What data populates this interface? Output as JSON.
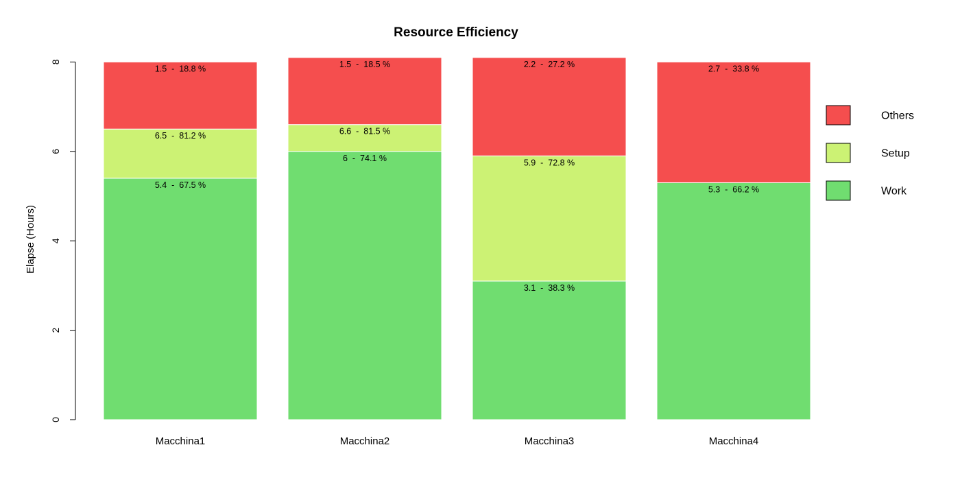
{
  "chart_data": {
    "type": "bar",
    "stacked": true,
    "title": "Resource Efficiency",
    "xlabel": "",
    "ylabel": "Elapse (Hours)",
    "ylim": [
      0,
      8
    ],
    "yticks": [
      0,
      2,
      4,
      6,
      8
    ],
    "grid": false,
    "legend_position": "right",
    "categories": [
      "Macchina1",
      "Macchina2",
      "Macchina3",
      "Macchina4"
    ],
    "series": [
      {
        "name": "Work",
        "color": "#70dd70",
        "values": [
          5.4,
          6.0,
          3.1,
          5.3
        ],
        "labels": [
          "5.4  -  67.5 %",
          "6  -  74.1 %",
          "3.1  -  38.3 %",
          "5.3  -  66.2 %"
        ]
      },
      {
        "name": "Setup",
        "color": "#ccf274",
        "values": [
          1.1,
          0.6,
          2.8,
          0
        ],
        "labels": [
          "6.5  -  81.2 %",
          "6.6  -  81.5 %",
          "5.9  -  72.8 %",
          ""
        ]
      },
      {
        "name": "Others",
        "color": "#f54e4e",
        "values": [
          1.5,
          1.5,
          2.2,
          2.7
        ],
        "labels": [
          "1.5  -  18.8 %",
          "1.5  -  18.5 %",
          "2.2  -  27.2 %",
          "2.7  -  33.8 %"
        ]
      }
    ],
    "legend": [
      "Others",
      "Setup",
      "Work"
    ]
  }
}
